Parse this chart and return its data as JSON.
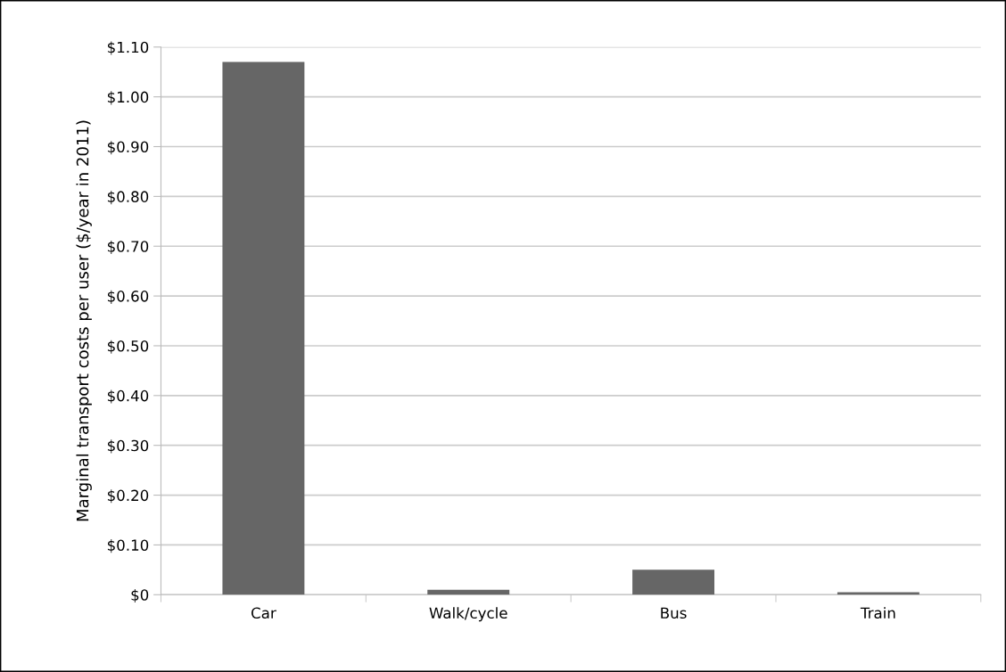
{
  "chart_data": {
    "type": "bar",
    "ylabel": "Marginal transport costs per user ($/year in 2011)",
    "categories": [
      "Car",
      "Walk/cycle",
      "Bus",
      "Train"
    ],
    "values": [
      1.07,
      0.01,
      0.05,
      0.005
    ],
    "color": "#666666",
    "ylim": [
      0,
      1.1
    ],
    "yticks": [
      {
        "value": 0,
        "label": "$0"
      },
      {
        "value": 0.1,
        "label": "$0.10"
      },
      {
        "value": 0.2,
        "label": "$0.20"
      },
      {
        "value": 0.3,
        "label": "$0.30"
      },
      {
        "value": 0.4,
        "label": "$0.40"
      },
      {
        "value": 0.5,
        "label": "$0.50"
      },
      {
        "value": 0.6,
        "label": "$0.60"
      },
      {
        "value": 0.7,
        "label": "$0.70"
      },
      {
        "value": 0.8,
        "label": "$0.80"
      },
      {
        "value": 0.9,
        "label": "$0.90"
      },
      {
        "value": 1.0,
        "label": "$1.00"
      },
      {
        "value": 1.1,
        "label": "$1.10"
      }
    ],
    "grid": "y"
  }
}
